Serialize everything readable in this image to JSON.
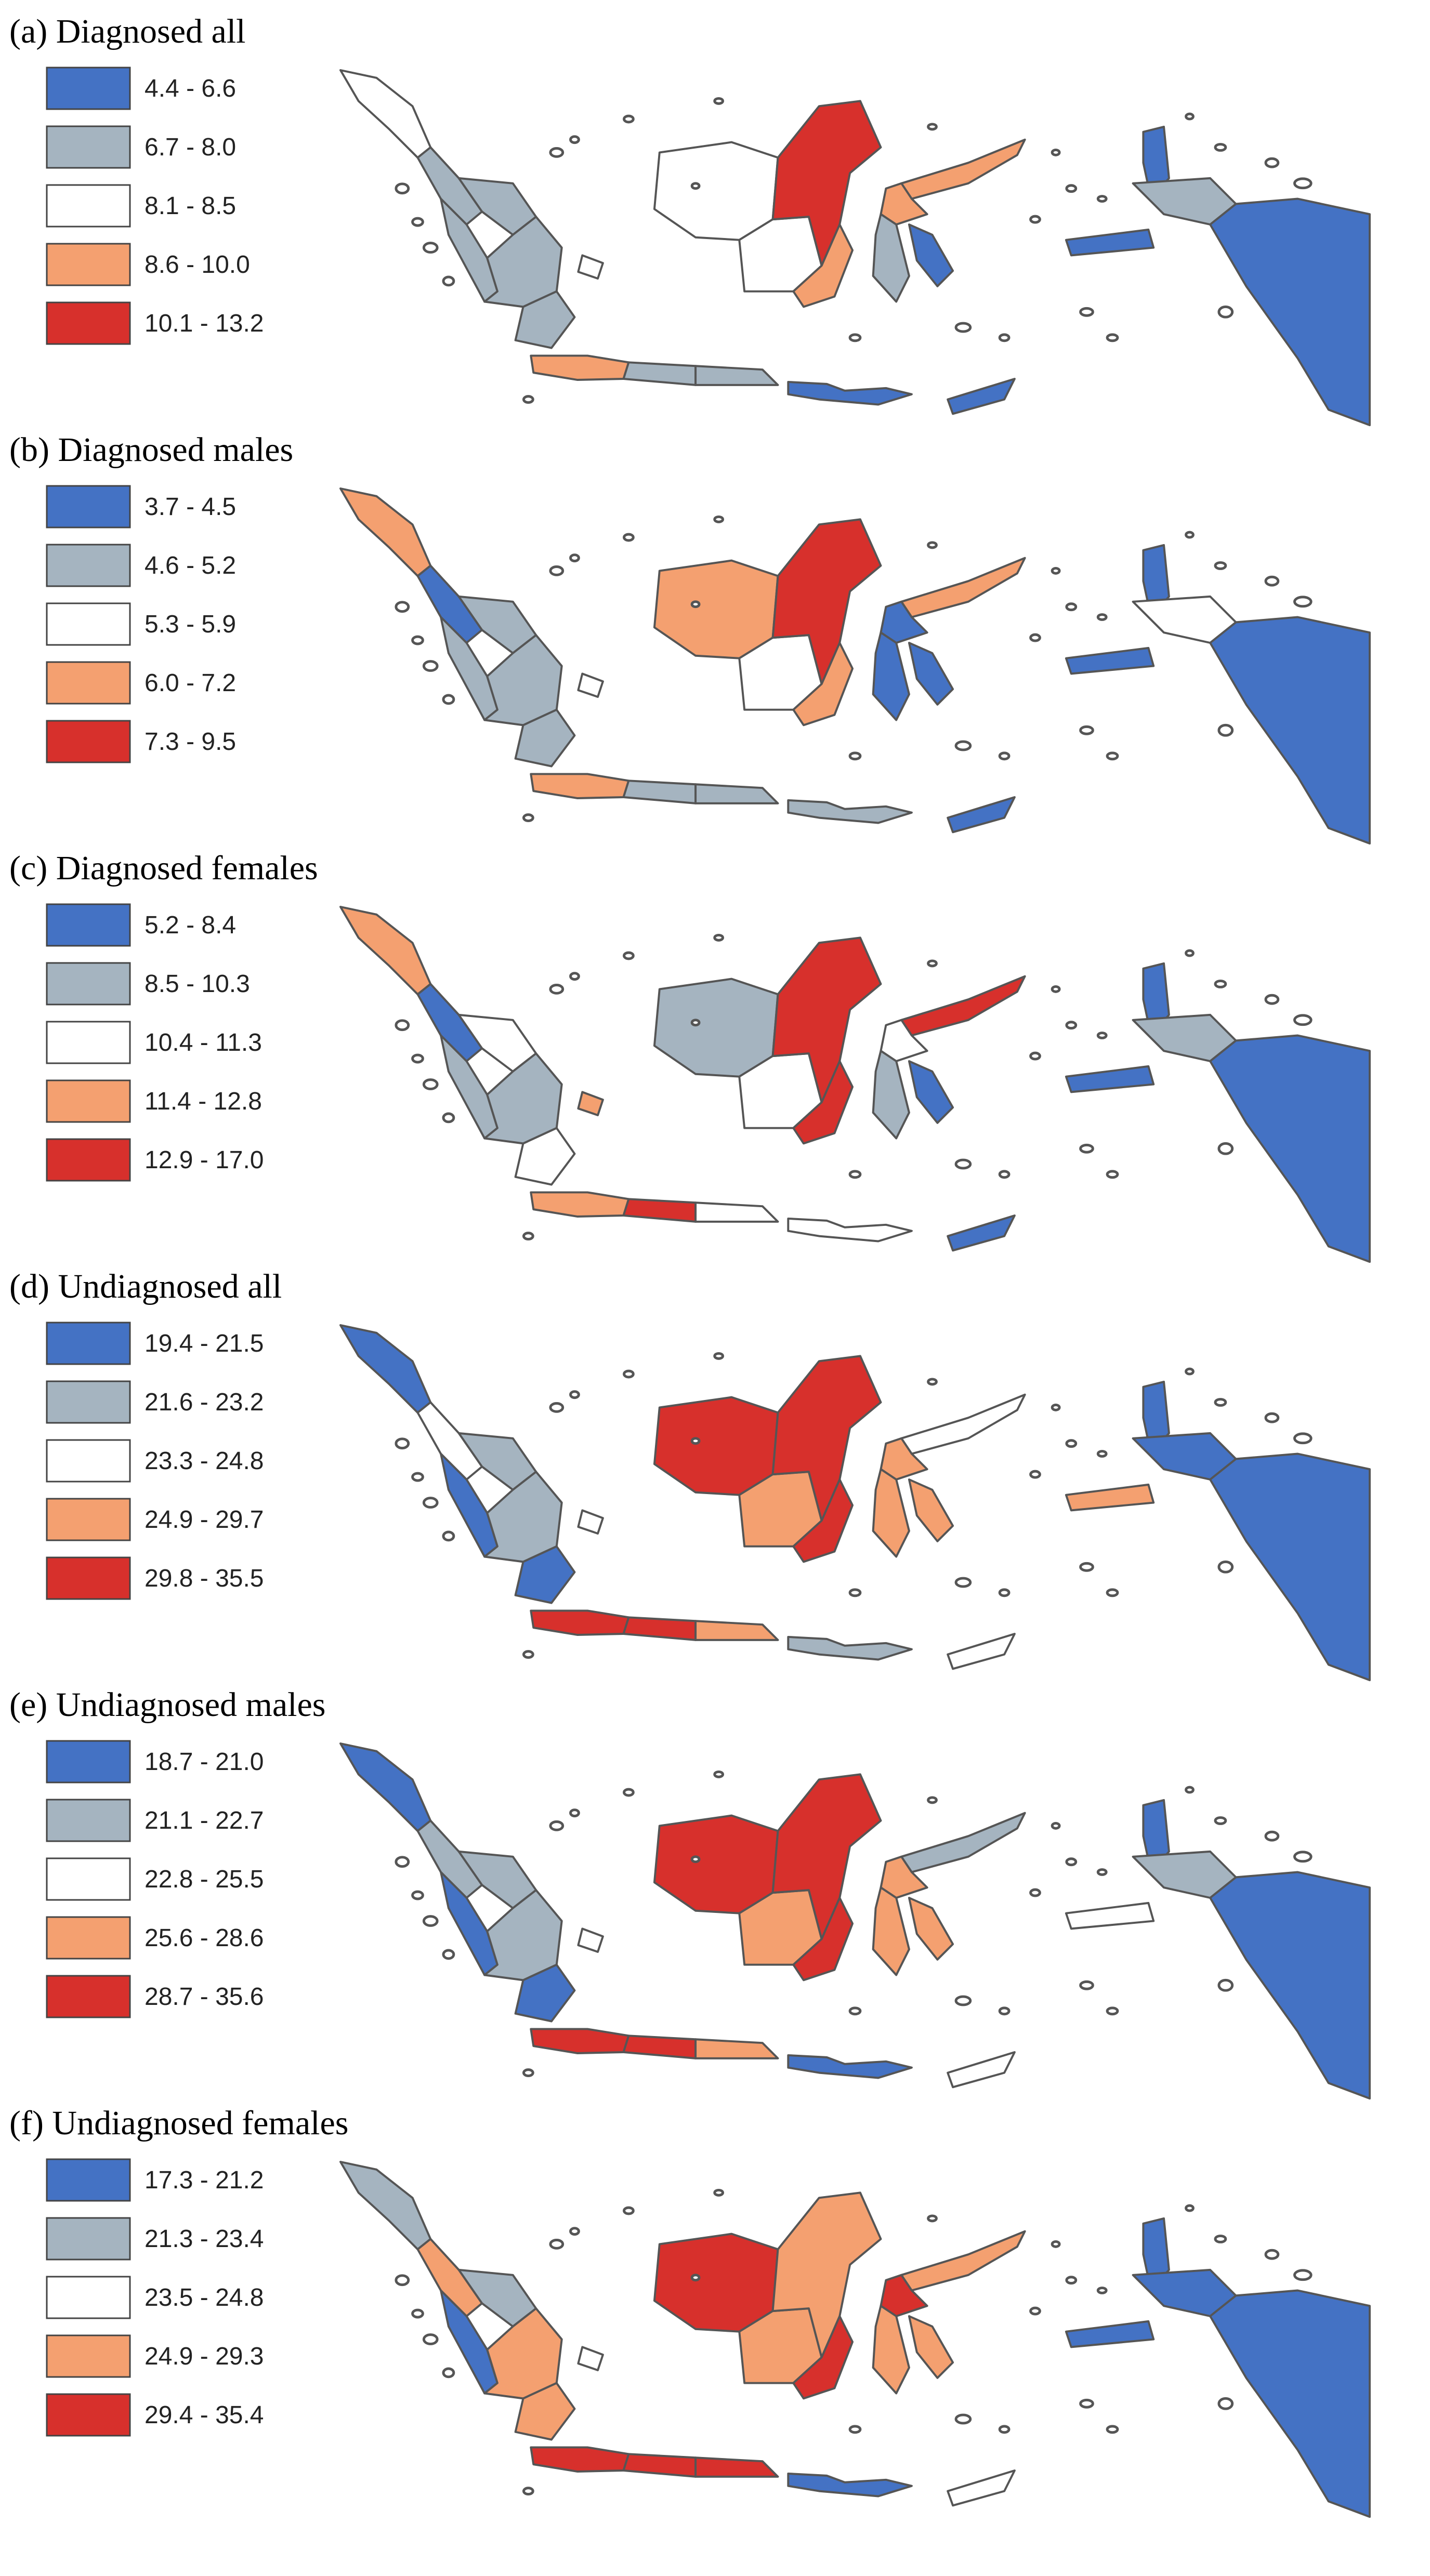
{
  "figure": {
    "panels": [
      {
        "id": "a",
        "title": "(a) Diagnosed all",
        "legend": [
          {
            "label": "4.4 - 6.6",
            "color": "#4472c4"
          },
          {
            "label": "6.7 - 8.0",
            "color": "#a5b4c0"
          },
          {
            "label": "8.1 - 8.5",
            "color": "#ffffff"
          },
          {
            "label": "8.6 - 10.0",
            "color": "#f4a070"
          },
          {
            "label": "10.1 - 13.2",
            "color": "#d7302c"
          }
        ],
        "region_classes": {
          "aceh": 2,
          "north_sumatra": 1,
          "west_sumatra": 1,
          "riau": 1,
          "south_sumatra": 1,
          "lampung": 1,
          "bangka": 2,
          "java_west": 3,
          "java_central": 1,
          "java_east": 1,
          "bali_nt": 0,
          "timor": 0,
          "w_kalimantan": 2,
          "c_kalimantan": 2,
          "e_kalimantan": 4,
          "s_kalimantan": 3,
          "n_sulawesi": 3,
          "c_sulawesi": 3,
          "s_sulawesi": 1,
          "se_sulawesi": 0,
          "maluku_n": 0,
          "maluku": 0,
          "w_papua": 1,
          "papua": 0
        }
      },
      {
        "id": "b",
        "title": "(b) Diagnosed males",
        "legend": [
          {
            "label": "3.7 - 4.5",
            "color": "#4472c4"
          },
          {
            "label": "4.6 - 5.2",
            "color": "#a5b4c0"
          },
          {
            "label": "5.3 - 5.9",
            "color": "#ffffff"
          },
          {
            "label": "6.0 - 7.2",
            "color": "#f4a070"
          },
          {
            "label": "7.3 - 9.5",
            "color": "#d7302c"
          }
        ],
        "region_classes": {
          "aceh": 3,
          "north_sumatra": 0,
          "west_sumatra": 1,
          "riau": 1,
          "south_sumatra": 1,
          "lampung": 1,
          "bangka": 2,
          "java_west": 3,
          "java_central": 1,
          "java_east": 1,
          "bali_nt": 1,
          "timor": 0,
          "w_kalimantan": 3,
          "c_kalimantan": 2,
          "e_kalimantan": 4,
          "s_kalimantan": 3,
          "n_sulawesi": 3,
          "c_sulawesi": 0,
          "s_sulawesi": 0,
          "se_sulawesi": 0,
          "maluku_n": 0,
          "maluku": 0,
          "w_papua": 2,
          "papua": 0
        }
      },
      {
        "id": "c",
        "title": "(c) Diagnosed females",
        "legend": [
          {
            "label": "5.2 - 8.4",
            "color": "#4472c4"
          },
          {
            "label": "8.5 - 10.3",
            "color": "#a5b4c0"
          },
          {
            "label": "10.4 - 11.3",
            "color": "#ffffff"
          },
          {
            "label": "11.4 - 12.8",
            "color": "#f4a070"
          },
          {
            "label": "12.9 - 17.0",
            "color": "#d7302c"
          }
        ],
        "region_classes": {
          "aceh": 3,
          "north_sumatra": 0,
          "west_sumatra": 1,
          "riau": 2,
          "south_sumatra": 1,
          "lampung": 2,
          "bangka": 3,
          "java_west": 3,
          "java_central": 4,
          "java_east": 2,
          "bali_nt": 2,
          "timor": 0,
          "w_kalimantan": 1,
          "c_kalimantan": 2,
          "e_kalimantan": 4,
          "s_kalimantan": 4,
          "n_sulawesi": 4,
          "c_sulawesi": 2,
          "s_sulawesi": 1,
          "se_sulawesi": 0,
          "maluku_n": 0,
          "maluku": 0,
          "w_papua": 1,
          "papua": 0
        }
      },
      {
        "id": "d",
        "title": "(d) Undiagnosed all",
        "legend": [
          {
            "label": "19.4 - 21.5",
            "color": "#4472c4"
          },
          {
            "label": "21.6 - 23.2",
            "color": "#a5b4c0"
          },
          {
            "label": "23.3 - 24.8",
            "color": "#ffffff"
          },
          {
            "label": "24.9 - 29.7",
            "color": "#f4a070"
          },
          {
            "label": "29.8 - 35.5",
            "color": "#d7302c"
          }
        ],
        "region_classes": {
          "aceh": 0,
          "north_sumatra": 2,
          "west_sumatra": 0,
          "riau": 1,
          "south_sumatra": 1,
          "lampung": 0,
          "bangka": 2,
          "java_west": 4,
          "java_central": 4,
          "java_east": 3,
          "bali_nt": 1,
          "timor": 2,
          "w_kalimantan": 4,
          "c_kalimantan": 3,
          "e_kalimantan": 4,
          "s_kalimantan": 4,
          "n_sulawesi": 2,
          "c_sulawesi": 3,
          "s_sulawesi": 3,
          "se_sulawesi": 3,
          "maluku_n": 0,
          "maluku": 3,
          "w_papua": 0,
          "papua": 0
        }
      },
      {
        "id": "e",
        "title": "(e) Undiagnosed males",
        "legend": [
          {
            "label": "18.7 - 21.0",
            "color": "#4472c4"
          },
          {
            "label": "21.1 - 22.7",
            "color": "#a5b4c0"
          },
          {
            "label": "22.8 - 25.5",
            "color": "#ffffff"
          },
          {
            "label": "25.6 - 28.6",
            "color": "#f4a070"
          },
          {
            "label": "28.7 - 35.6",
            "color": "#d7302c"
          }
        ],
        "region_classes": {
          "aceh": 0,
          "north_sumatra": 1,
          "west_sumatra": 0,
          "riau": 1,
          "south_sumatra": 1,
          "lampung": 0,
          "bangka": 2,
          "java_west": 4,
          "java_central": 4,
          "java_east": 3,
          "bali_nt": 0,
          "timor": 2,
          "w_kalimantan": 4,
          "c_kalimantan": 3,
          "e_kalimantan": 4,
          "s_kalimantan": 4,
          "n_sulawesi": 1,
          "c_sulawesi": 3,
          "s_sulawesi": 3,
          "se_sulawesi": 3,
          "maluku_n": 0,
          "maluku": 2,
          "w_papua": 1,
          "papua": 0
        }
      },
      {
        "id": "f",
        "title": "(f) Undiagnosed females",
        "legend": [
          {
            "label": "17.3 - 21.2",
            "color": "#4472c4"
          },
          {
            "label": "21.3 - 23.4",
            "color": "#a5b4c0"
          },
          {
            "label": "23.5 - 24.8",
            "color": "#ffffff"
          },
          {
            "label": "24.9 - 29.3",
            "color": "#f4a070"
          },
          {
            "label": "29.4 - 35.4",
            "color": "#d7302c"
          }
        ],
        "region_classes": {
          "aceh": 1,
          "north_sumatra": 3,
          "west_sumatra": 0,
          "riau": 1,
          "south_sumatra": 3,
          "lampung": 3,
          "bangka": 2,
          "java_west": 4,
          "java_central": 4,
          "java_east": 4,
          "bali_nt": 0,
          "timor": 2,
          "w_kalimantan": 4,
          "c_kalimantan": 3,
          "e_kalimantan": 3,
          "s_kalimantan": 4,
          "n_sulawesi": 3,
          "c_sulawesi": 4,
          "s_sulawesi": 3,
          "se_sulawesi": 3,
          "maluku_n": 0,
          "maluku": 0,
          "w_papua": 0,
          "papua": 0
        }
      }
    ]
  }
}
